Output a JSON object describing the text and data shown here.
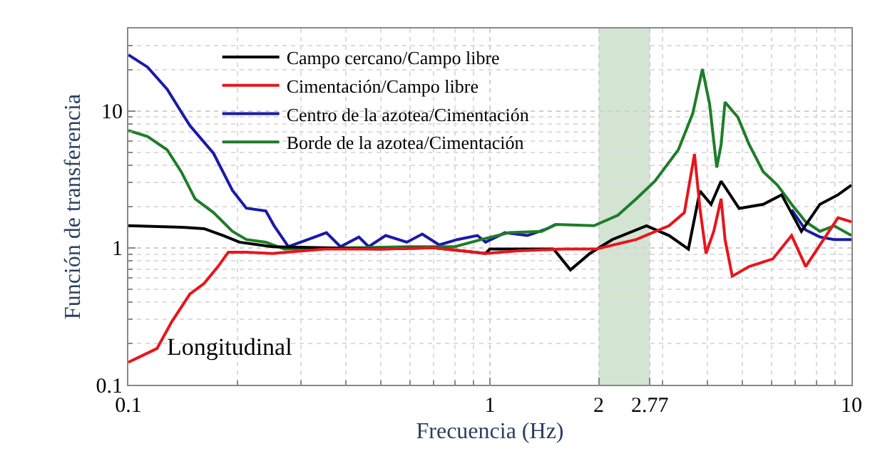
{
  "chart_data": {
    "type": "line",
    "xlabel": "Frecuencia (Hz)",
    "ylabel": "Función de transferencia",
    "log": "xy",
    "grid": true,
    "legend": "top",
    "line_style": "solid",
    "marker": "none",
    "xlim": [
      0.1,
      10
    ],
    "xticks": [
      0.1,
      1,
      2,
      2.77,
      10
    ],
    "ylim": [
      0.1,
      40
    ],
    "yticks": [
      0.1,
      1,
      10
    ],
    "bands": [
      {
        "axis": "x",
        "from": 2,
        "to": 2.77,
        "color": "#d3e4d3"
      }
    ],
    "annotations": [
      "Longitudinal"
    ],
    "series": [
      {
        "name": "Centro de la azotea/Cimentación",
        "color": "#1a1aa8",
        "x": [
          0.1,
          0.113,
          0.128,
          0.148,
          0.172,
          0.194,
          0.212,
          0.24,
          0.253,
          0.277,
          0.314,
          0.353,
          0.386,
          0.434,
          0.462,
          0.515,
          0.589,
          0.65,
          0.724,
          0.813,
          0.923,
          0.973,
          1.1,
          1.27,
          1.44,
          1.52,
          1.94,
          6.83,
          7.47,
          8.18,
          8.95,
          10
        ],
        "values": [
          25.7,
          20.9,
          14.4,
          7.8,
          4.9,
          2.63,
          1.95,
          1.86,
          1.45,
          1.02,
          1.15,
          1.29,
          1.02,
          1.2,
          1.02,
          1.23,
          1.1,
          1.26,
          1.05,
          1.15,
          1.23,
          1.1,
          1.29,
          1.23,
          1.38,
          1.48,
          null,
          1.9,
          1.35,
          1.2,
          1.15,
          1.15
        ]
      },
      {
        "name": "Borde de la azotea/Cimentación",
        "color": "#1e7d28",
        "x": [
          0.1,
          0.113,
          0.128,
          0.14,
          0.153,
          0.172,
          0.194,
          0.212,
          0.24,
          0.27,
          0.4,
          0.6,
          0.8,
          0.947,
          1.13,
          1.39,
          1.52,
          1.94,
          2.26,
          2.54,
          2.86,
          3.32,
          3.64,
          3.87,
          4.05,
          4.24,
          4.36,
          4.47,
          4.85,
          5.21,
          5.7,
          6.24,
          6.83,
          7.47,
          8.18,
          8.95,
          10
        ],
        "values": [
          7.2,
          6.5,
          5.2,
          3.6,
          2.28,
          1.81,
          1.32,
          1.15,
          1.1,
          0.98,
          1.0,
          1.02,
          1.02,
          1.15,
          1.29,
          1.32,
          1.48,
          1.45,
          1.73,
          2.28,
          3.07,
          5.2,
          9.6,
          20.2,
          11.3,
          3.86,
          5.7,
          11.6,
          9.0,
          5.7,
          3.6,
          2.87,
          2.08,
          1.55,
          1.32,
          1.45,
          1.23
        ]
      },
      {
        "name": "Campo cercano/Campo libre",
        "color": "#000000",
        "x": [
          0.1,
          0.144,
          0.162,
          0.183,
          0.203,
          0.25,
          0.35,
          0.5,
          0.7,
          0.973,
          1.0,
          1.27,
          1.5,
          1.67,
          1.89,
          2.18,
          2.71,
          3.13,
          3.54,
          3.81,
          4.09,
          4.36,
          4.89,
          5.7,
          6.41,
          7.27,
          8.18,
          9.18,
          10
        ],
        "values": [
          1.45,
          1.41,
          1.38,
          1.23,
          1.1,
          1.02,
          1.0,
          0.98,
          1.0,
          0.91,
          0.98,
          0.98,
          0.98,
          0.69,
          0.91,
          1.15,
          1.45,
          1.23,
          0.98,
          2.6,
          2.08,
          3.07,
          1.94,
          2.08,
          2.44,
          1.32,
          2.08,
          2.44,
          2.87
        ]
      },
      {
        "name": "Cimentación/Campo libre",
        "color": "#e8151b",
        "x": [
          0.1,
          0.12,
          0.132,
          0.148,
          0.162,
          0.177,
          0.189,
          0.212,
          0.25,
          0.35,
          0.5,
          0.7,
          0.973,
          1.2,
          1.6,
          1.97,
          2.54,
          3.13,
          3.45,
          3.68,
          3.81,
          3.96,
          4.16,
          4.36,
          4.47,
          4.68,
          5.21,
          6.06,
          6.83,
          7.47,
          8.18,
          9.18,
          10
        ],
        "values": [
          0.146,
          0.184,
          0.29,
          0.46,
          0.55,
          0.73,
          0.93,
          0.93,
          0.91,
          0.98,
          0.98,
          1.0,
          0.91,
          0.95,
          0.98,
          0.98,
          1.15,
          1.45,
          1.81,
          4.85,
          1.94,
          0.91,
          1.32,
          2.28,
          1.15,
          0.62,
          0.73,
          0.83,
          1.23,
          0.73,
          1.05,
          1.66,
          1.55
        ]
      }
    ]
  }
}
